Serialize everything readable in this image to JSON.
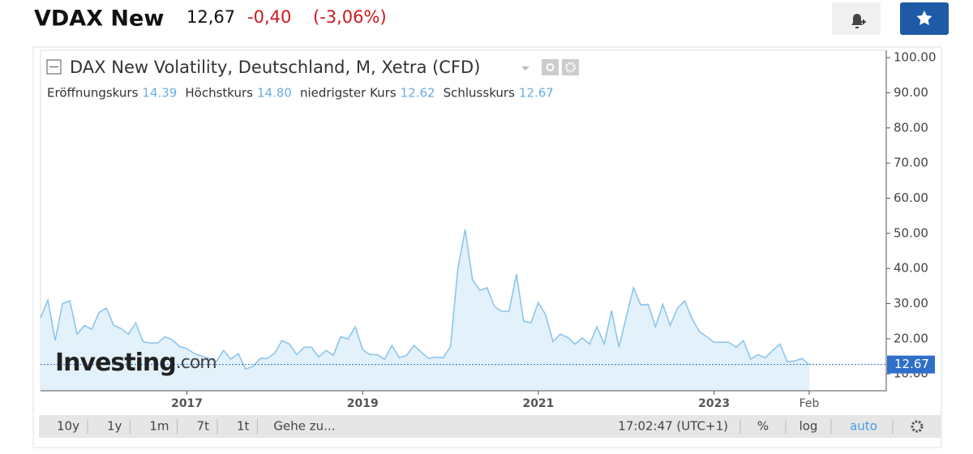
{
  "header": {
    "name": "VDAX New",
    "price": "12,67",
    "change": "-0,40",
    "change_pct": "(-3,06%)"
  },
  "chart_data": {
    "type": "line",
    "title": "DAX New Volatility, Deutschland, M, Xetra (CFD)",
    "ohlc": [
      {
        "label": "Eröffnungskurs",
        "value": "14.39"
      },
      {
        "label": "Höchstkurs",
        "value": "14.80"
      },
      {
        "label": "niedrigster Kurs",
        "value": "12.62"
      },
      {
        "label": "Schlusskurs",
        "value": "12.67"
      }
    ],
    "watermark": [
      "Investing",
      ".com"
    ],
    "categories": [
      null,
      null,
      null,
      null,
      null,
      null,
      null,
      null,
      null,
      null,
      null,
      null,
      null,
      null,
      null,
      null,
      null,
      null,
      null,
      null,
      "2017",
      null,
      null,
      null,
      null,
      null,
      null,
      null,
      null,
      null,
      null,
      null,
      null,
      null,
      null,
      null,
      null,
      null,
      null,
      null,
      null,
      null,
      null,
      null,
      "2019",
      null,
      null,
      null,
      null,
      null,
      null,
      null,
      null,
      null,
      null,
      null,
      null,
      null,
      null,
      null,
      null,
      null,
      null,
      null,
      null,
      null,
      null,
      null,
      "2021",
      null,
      null,
      null,
      null,
      null,
      null,
      null,
      null,
      null,
      null,
      null,
      null,
      null,
      null,
      null,
      null,
      null,
      null,
      null,
      null,
      null,
      null,
      null,
      "2023",
      null,
      null,
      null,
      null,
      null,
      null,
      null,
      null,
      null,
      null,
      null,
      null,
      "Feb"
    ],
    "series": [
      {
        "name": "VDAX New",
        "color": "#8ec5ec",
        "fill": "#e3f1fa",
        "values": [
          25.9,
          31,
          19.5,
          30,
          30.8,
          21.3,
          23.8,
          22.7,
          27.5,
          28.7,
          23.8,
          22.9,
          21.3,
          24.5,
          19.2,
          18.8,
          18.8,
          20.6,
          19.7,
          17.8,
          17.2,
          15.8,
          15.1,
          14.4,
          13.5,
          16.7,
          14.2,
          15.8,
          11.4,
          12.1,
          14.4,
          14.4,
          16,
          19.5,
          18.5,
          15.5,
          17.6,
          17.6,
          14.8,
          16.7,
          15.3,
          20.6,
          19.9,
          23.4,
          16.9,
          15.5,
          15.5,
          14.2,
          18.1,
          14.6,
          15.3,
          18.1,
          16.2,
          14.4,
          14.8,
          14.6,
          17.8,
          39.8,
          51.1,
          36.8,
          33.8,
          34.5,
          29.2,
          27.8,
          27.8,
          38.4,
          25,
          24.5,
          30.3,
          26.8,
          19.2,
          21.3,
          20.4,
          18.5,
          20.2,
          18.5,
          23.4,
          18.5,
          28,
          17.6,
          26.2,
          34.5,
          29.6,
          29.8,
          23.4,
          29.8,
          23.8,
          28.7,
          30.8,
          25.7,
          22,
          20.6,
          19,
          19,
          19,
          17.6,
          19.5,
          14.2,
          15.5,
          14.6,
          16.7,
          18.5,
          13.5,
          13.7,
          14.4,
          12.67
        ]
      }
    ],
    "ylim": [
      5.2,
      102.1
    ],
    "yticks": [
      {
        "value": 10,
        "label": "10.00"
      },
      {
        "value": 20,
        "label": "20.00"
      },
      {
        "value": 30,
        "label": "30.00"
      },
      {
        "value": 40,
        "label": "40.00"
      },
      {
        "value": 50,
        "label": "50.00"
      },
      {
        "value": 60,
        "label": "60.00"
      },
      {
        "value": 70,
        "label": "70.00"
      },
      {
        "value": 80,
        "label": "80.00"
      },
      {
        "value": 90,
        "label": "90.00"
      },
      {
        "value": 100,
        "label": "100.00"
      }
    ],
    "last_marker_color": "#2f6fc9"
  },
  "toolbar": {
    "ranges": [
      "10y",
      "1y",
      "1m",
      "7t",
      "1t"
    ],
    "goto": "Gehe zu...",
    "time": "17:02:47 (UTC+1)",
    "options": [
      "%",
      "log",
      "auto"
    ]
  }
}
